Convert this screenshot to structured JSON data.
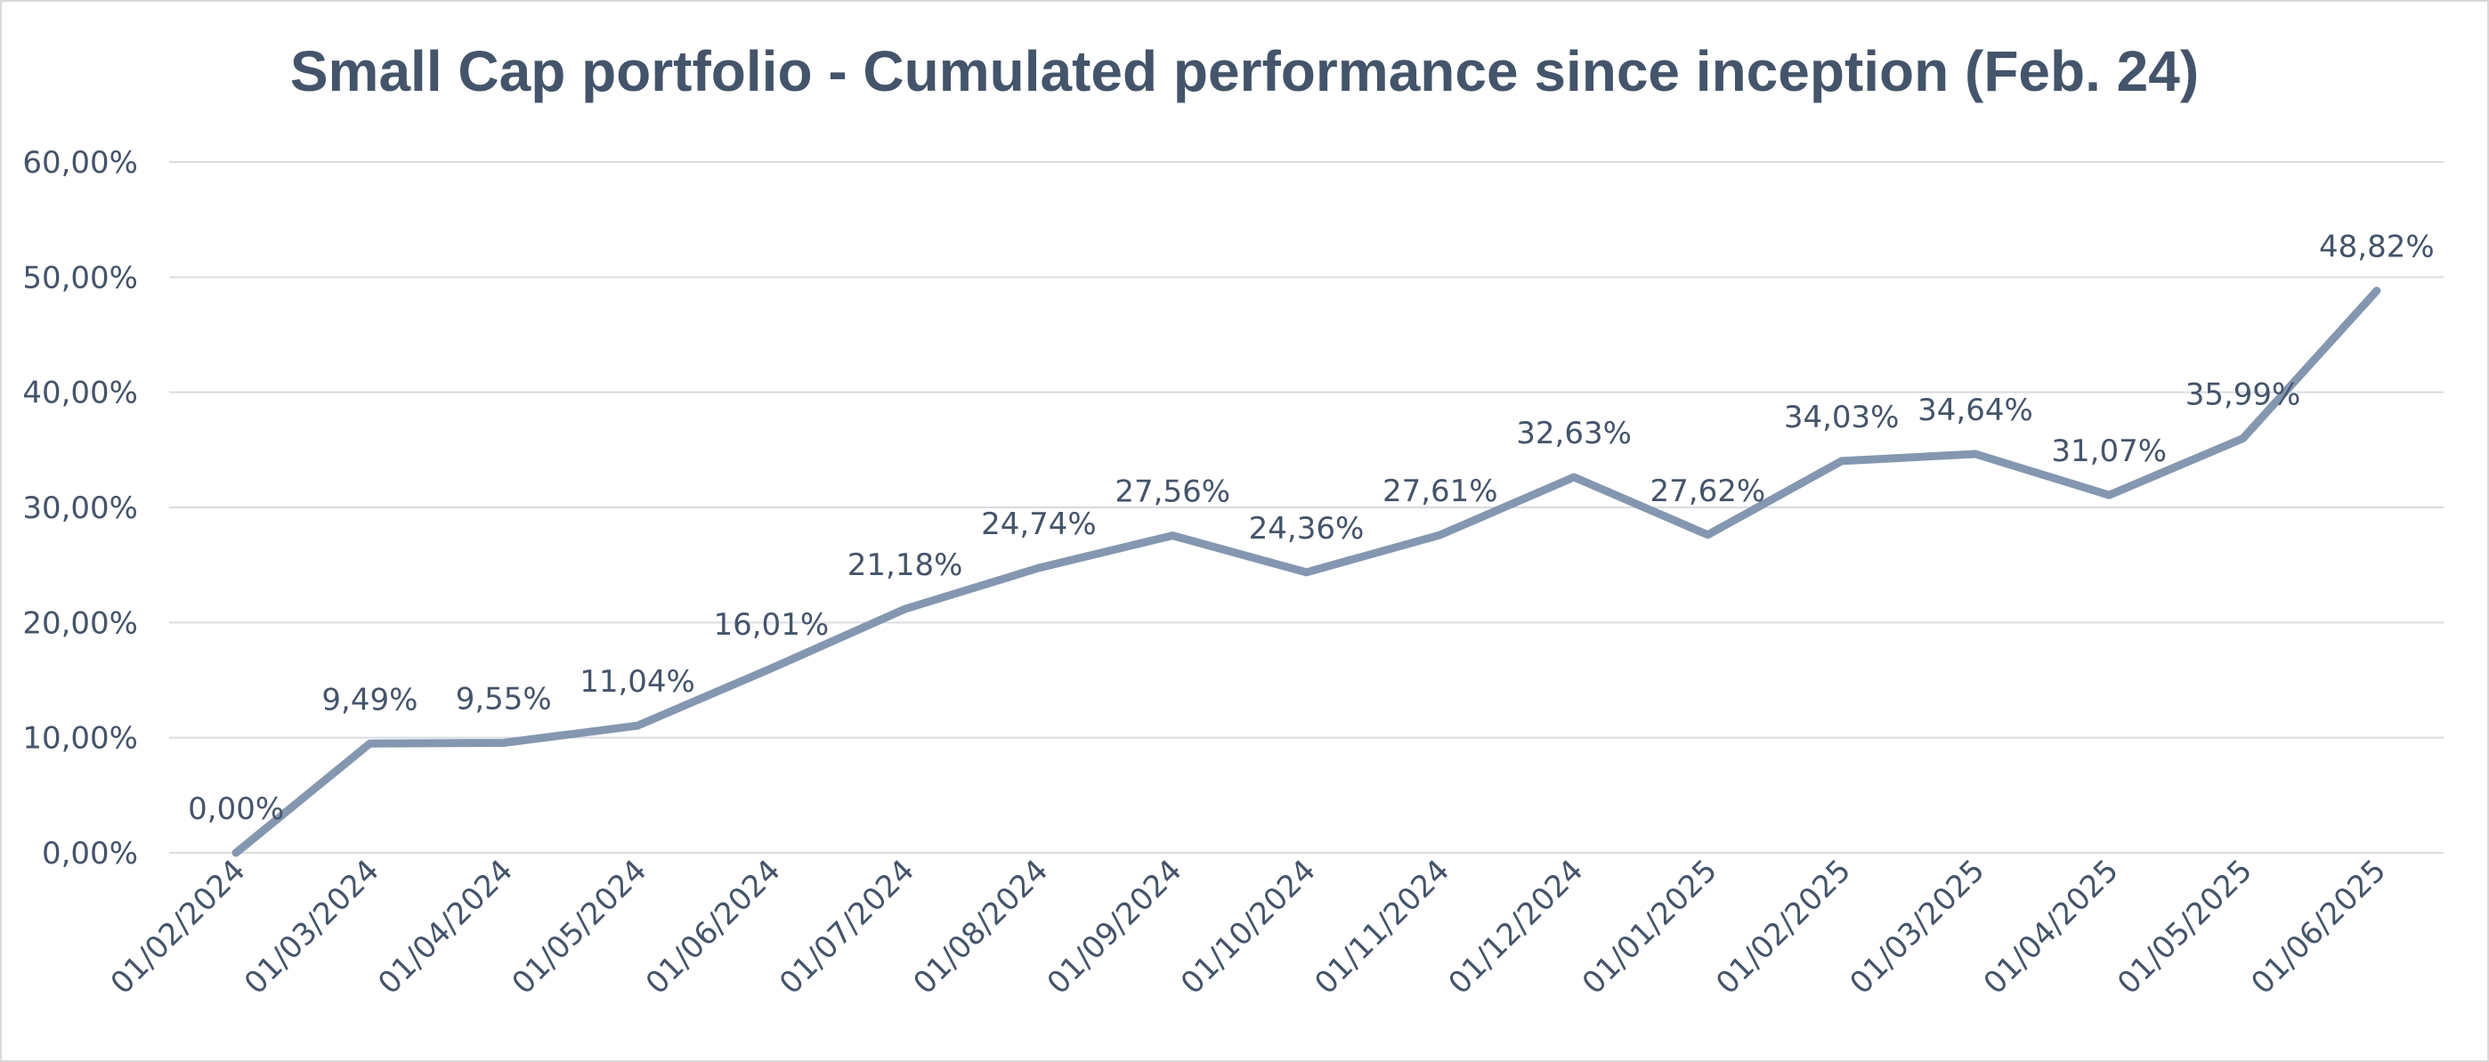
{
  "chart_data": {
    "type": "line",
    "title": "Small Cap portfolio - Cumulated performance since inception (Feb. 24)",
    "xlabel": "",
    "ylabel": "",
    "ylim": [
      0,
      60
    ],
    "y_ticks": [
      0,
      10,
      20,
      30,
      40,
      50,
      60
    ],
    "y_tick_labels": [
      "0,00%",
      "10,00%",
      "20,00%",
      "30,00%",
      "40,00%",
      "50,00%",
      "60,00%"
    ],
    "grid": true,
    "legend": "none",
    "line_color": "#8497b0",
    "categories": [
      "01/02/2024",
      "01/03/2024",
      "01/04/2024",
      "01/05/2024",
      "01/06/2024",
      "01/07/2024",
      "01/08/2024",
      "01/09/2024",
      "01/10/2024",
      "01/11/2024",
      "01/12/2024",
      "01/01/2025",
      "01/02/2025",
      "01/03/2025",
      "01/04/2025",
      "01/05/2025",
      "01/06/2025"
    ],
    "values": [
      0.0,
      9.49,
      9.55,
      11.04,
      16.01,
      21.18,
      24.74,
      27.56,
      24.36,
      27.61,
      32.63,
      27.62,
      34.03,
      34.64,
      31.07,
      35.99,
      48.82
    ],
    "data_labels": [
      "0,00%",
      "9,49%",
      "9,55%",
      "11,04%",
      "16,01%",
      "21,18%",
      "24,74%",
      "27,56%",
      "24,36%",
      "27,61%",
      "32,63%",
      "27,62%",
      "34,03%",
      "34,64%",
      "31,07%",
      "35,99%",
      "48,82%"
    ]
  }
}
